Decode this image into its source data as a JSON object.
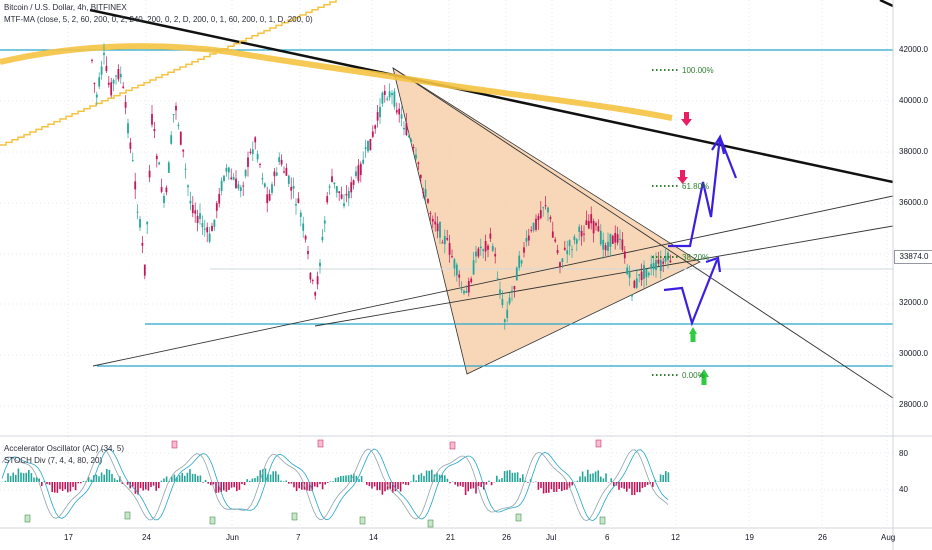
{
  "header": {
    "symbol_line": "Bitcoin / U.S. Dollar, 4h, BITFINEX",
    "indicator_line": "MTF-MA (close, 5, 2, 60, 200, 0, 2, 240, 200, 0, 2, D, 200, 0, 1, 60, 200, 0, 1, D, 200, 0)"
  },
  "oscillator_legend": {
    "ac": "Accelerator Oscillator (AC) (34, 5)",
    "stoch": "STOCH Div (7, 4, 4, 80, 20)"
  },
  "fib_labels": [
    "100.00%",
    "61.80%",
    "38.20%",
    "0.00%"
  ],
  "current_price": "33874.0",
  "colors": {
    "up_candle": "#26a69a",
    "down_candle": "#c2185b",
    "ma_line": "#f5c342",
    "triangle_fill": "#f6c9a0",
    "support_line": "#26a6c9",
    "projection": "#3b1fe0",
    "arrow_down": "#e91e63",
    "arrow_up": "#2ecc40"
  },
  "chart_data": {
    "type": "line",
    "y_ticks": [
      "42000.0",
      "40000.0",
      "38000.0",
      "36000.0",
      "34000.0",
      "32000.0",
      "30000.0",
      "28000.0"
    ],
    "osc_ticks": [
      "80",
      "40"
    ],
    "x_ticks": [
      "17",
      "24",
      "Jun",
      "7",
      "14",
      "21",
      "26",
      "Jul",
      "6",
      "12",
      "19",
      "26",
      "Aug"
    ],
    "ylim": [
      27000,
      44000
    ],
    "grid": false,
    "horizontal_levels": [
      42000,
      31300,
      29600
    ],
    "last_price": 33874
  }
}
